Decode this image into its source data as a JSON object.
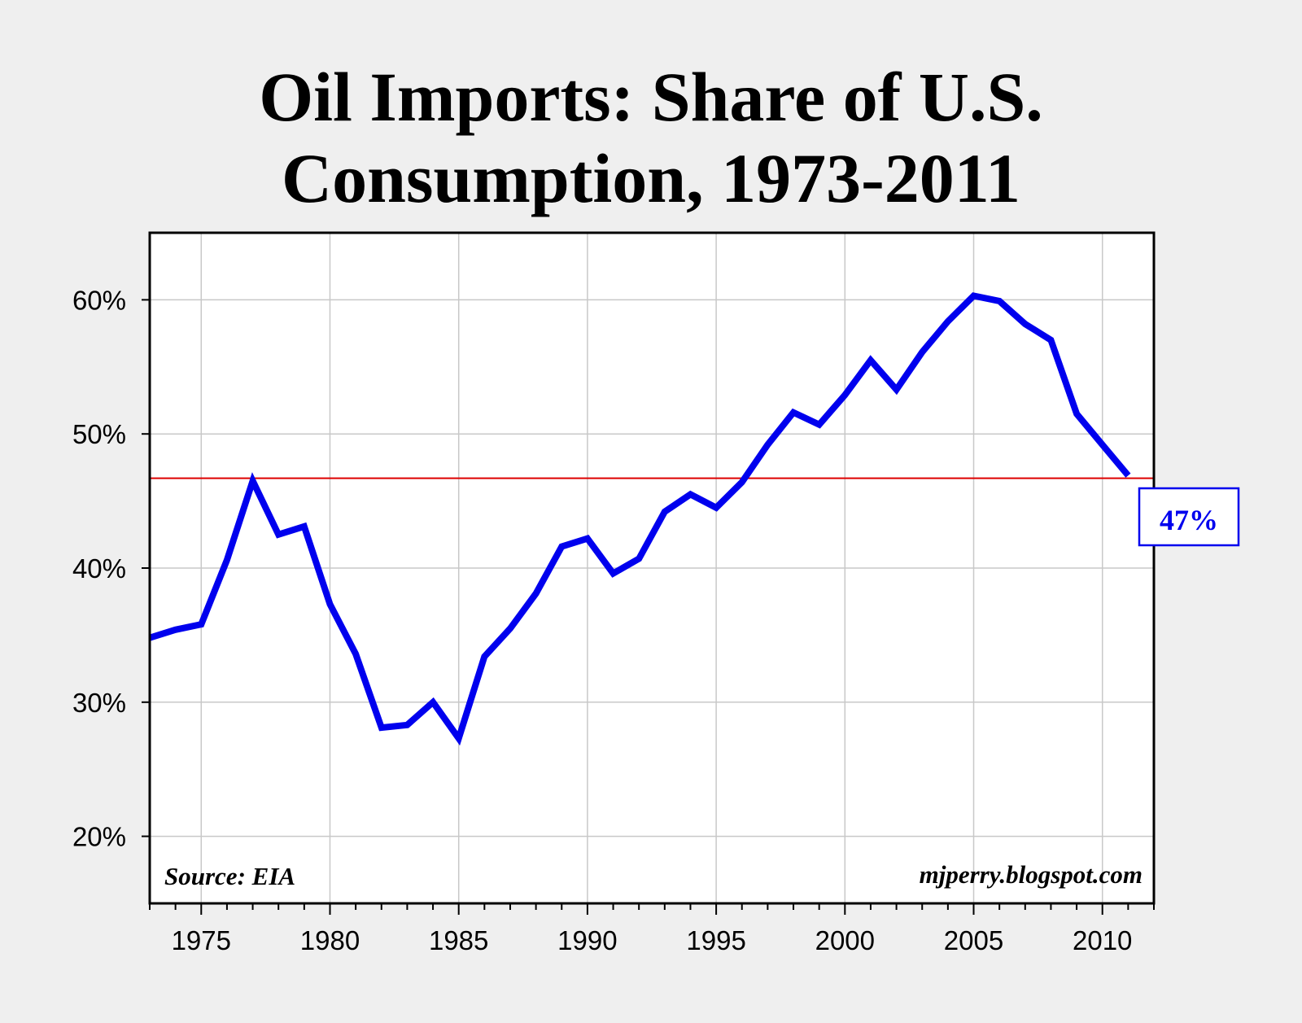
{
  "colors": {
    "background": "#efefef",
    "plot_background": "#ffffff",
    "series_line": "#0000ee",
    "reference_line": "#dd0000",
    "grid": "#c8c8c8",
    "frame": "#000000"
  },
  "chart_data": {
    "type": "line",
    "title": "Oil Imports: Share of U.S. Consumption, 1973-2011",
    "title_lines": [
      "Oil Imports: Share of U.S.",
      "Consumption, 1973-2011"
    ],
    "xlabel": "",
    "ylabel": "",
    "xlim": [
      1973,
      2012
    ],
    "ylim": [
      15,
      65
    ],
    "grid": true,
    "x_ticks": [
      1975,
      1980,
      1985,
      1990,
      1995,
      2000,
      2005,
      2010
    ],
    "x_tick_labels": [
      "1975",
      "1980",
      "1985",
      "1990",
      "1995",
      "2000",
      "2005",
      "2010"
    ],
    "y_ticks": [
      20,
      30,
      40,
      50,
      60
    ],
    "y_tick_labels": [
      "20%",
      "30%",
      "40%",
      "50%",
      "60%"
    ],
    "series": [
      {
        "name": "Oil imports share of U.S. consumption",
        "x": [
          1973,
          1974,
          1975,
          1976,
          1977,
          1978,
          1979,
          1980,
          1981,
          1982,
          1983,
          1984,
          1985,
          1986,
          1987,
          1988,
          1989,
          1990,
          1991,
          1992,
          1993,
          1994,
          1995,
          1996,
          1997,
          1998,
          1999,
          2000,
          2001,
          2002,
          2003,
          2004,
          2005,
          2006,
          2007,
          2008,
          2009,
          2010,
          2011
        ],
        "values": [
          34.8,
          35.4,
          35.8,
          40.6,
          46.5,
          42.5,
          43.1,
          37.3,
          33.6,
          28.1,
          28.3,
          30.0,
          27.3,
          33.4,
          35.5,
          38.1,
          41.6,
          42.2,
          39.6,
          40.7,
          44.2,
          45.5,
          44.5,
          46.4,
          49.2,
          51.6,
          50.7,
          52.9,
          55.5,
          53.3,
          56.1,
          58.4,
          60.3,
          59.9,
          58.2,
          57.0,
          51.5,
          49.2,
          46.9
        ]
      }
    ],
    "reference_line": {
      "y": 46.7
    },
    "annotations": {
      "callout": "47%",
      "source": "Source: EIA",
      "credit": "mjperry.blogspot.com"
    }
  }
}
